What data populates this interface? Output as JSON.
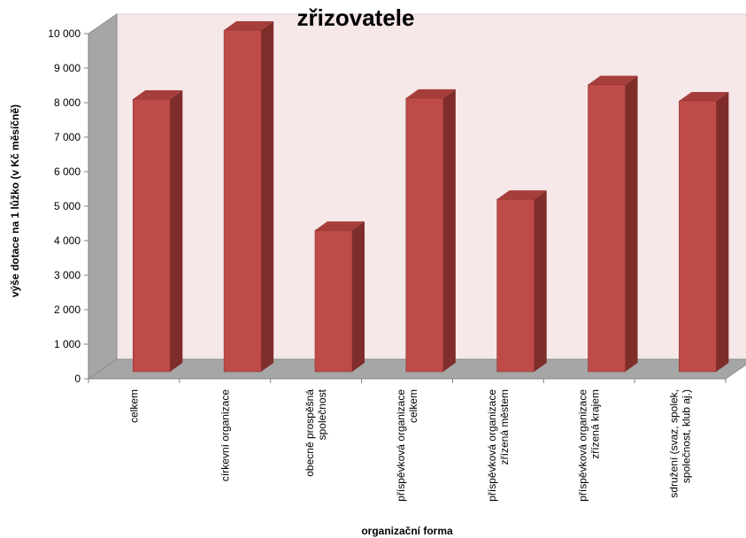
{
  "chart_data": {
    "type": "bar",
    "title": "zřizovatele",
    "xlabel": "organizační forma",
    "ylabel": "výše dotace na 1 lůžko (v Kč měsíčně)",
    "ylim": [
      0,
      10000
    ],
    "y_ticks": [
      "0",
      "1 000",
      "2 000",
      "3 000",
      "4 000",
      "5 000",
      "6 000",
      "7 000",
      "8 000",
      "9 000",
      "10 000"
    ],
    "categories": [
      [
        "celkem"
      ],
      [
        "církevní organizace"
      ],
      [
        "obecně prospěšná",
        "společnost"
      ],
      [
        "příspěvková organizace",
        "celkem"
      ],
      [
        "příspěvková organizace",
        "zřízená městem"
      ],
      [
        "příspěvková organizace",
        "zřízená krajem"
      ],
      [
        "sdružení (svaz, spolek,",
        "společnost, klub aj.)"
      ]
    ],
    "values": [
      8050,
      10050,
      4250,
      8080,
      5150,
      8470,
      8000
    ],
    "grid": false,
    "legend": "none",
    "colors": {
      "bar_front": "#BE4B48",
      "bar_side": "#7F2D2B",
      "bar_top": "#A63E3B",
      "back_wall": "#F6E7E8",
      "side_wall": "#A6A6A6",
      "floor": "#A6A6A6",
      "axis": "#808080"
    }
  }
}
